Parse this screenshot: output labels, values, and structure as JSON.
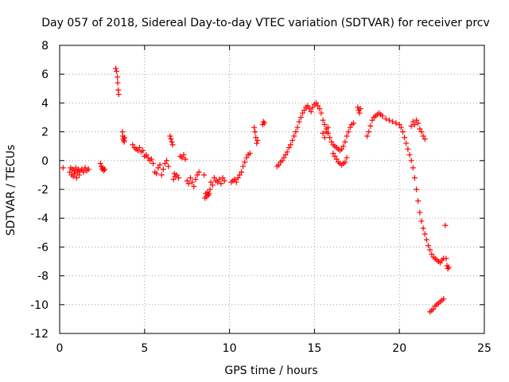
{
  "chart_data": {
    "type": "scatter",
    "title": "Day 057 of 2018, Sidereal Day-to-day VTEC variation (SDTVAR) for receiver prcv",
    "xlabel": "GPS time / hours",
    "ylabel": "SDTVAR / TECUs",
    "xlim": [
      0,
      25
    ],
    "ylim": [
      -12,
      8
    ],
    "grid": true,
    "marker": "+",
    "color": "#ff0000",
    "xticks": [
      0,
      5,
      10,
      15,
      20,
      25
    ],
    "yticks": [
      -12,
      -10,
      -8,
      -6,
      -4,
      -2,
      0,
      2,
      4,
      6,
      8
    ],
    "series": [
      {
        "name": "SDTVAR",
        "x": [
          0.2,
          0.6,
          0.65,
          0.7,
          0.75,
          0.8,
          0.85,
          0.9,
          0.95,
          1.0,
          1.05,
          1.1,
          1.15,
          1.2,
          1.3,
          1.4,
          1.5,
          1.6,
          1.7,
          2.4,
          2.45,
          2.5,
          2.55,
          2.6,
          2.65,
          3.3,
          3.35,
          3.4,
          3.42,
          3.45,
          3.48,
          3.7,
          3.72,
          3.75,
          3.78,
          3.8,
          3.82,
          4.3,
          4.4,
          4.5,
          4.6,
          4.7,
          4.8,
          4.9,
          5.0,
          5.1,
          5.2,
          5.3,
          5.4,
          5.5,
          5.6,
          5.7,
          5.8,
          5.9,
          6.0,
          6.1,
          6.2,
          6.3,
          6.4,
          6.5,
          6.55,
          6.6,
          6.65,
          6.7,
          6.75,
          6.8,
          6.9,
          7.0,
          7.1,
          7.2,
          7.3,
          7.4,
          7.5,
          7.6,
          7.7,
          7.8,
          7.9,
          8.0,
          8.1,
          8.2,
          8.5,
          8.55,
          8.6,
          8.65,
          8.7,
          8.75,
          8.8,
          8.85,
          8.9,
          9.0,
          9.1,
          9.2,
          9.3,
          9.4,
          9.5,
          9.6,
          9.7,
          10.1,
          10.2,
          10.3,
          10.4,
          10.5,
          10.6,
          10.7,
          10.8,
          10.9,
          11.0,
          11.1,
          11.2,
          11.45,
          11.5,
          11.55,
          11.6,
          11.65,
          11.95,
          12.0,
          12.05,
          12.8,
          12.9,
          13.0,
          13.1,
          13.2,
          13.3,
          13.4,
          13.5,
          13.6,
          13.7,
          13.8,
          13.9,
          14.0,
          14.1,
          14.2,
          14.3,
          14.4,
          14.5,
          14.6,
          14.7,
          14.8,
          14.9,
          15.0,
          15.1,
          15.2,
          15.3,
          15.4,
          15.5,
          15.6,
          15.7,
          15.8,
          15.9,
          16.0,
          16.1,
          16.2,
          16.3,
          16.4,
          16.5,
          16.6,
          16.7,
          16.8,
          16.9,
          17.0,
          17.1,
          17.2,
          17.3,
          15.5,
          15.6,
          15.7,
          15.8,
          16.1,
          16.2,
          16.3,
          16.4,
          16.5,
          16.6,
          16.7,
          16.8,
          16.9,
          17.55,
          17.6,
          17.65,
          17.7,
          18.1,
          18.2,
          18.3,
          18.4,
          18.5,
          18.6,
          18.7,
          18.8,
          18.9,
          19.0,
          19.2,
          19.4,
          19.6,
          19.8,
          20.0,
          20.1,
          20.2,
          20.3,
          20.4,
          20.5,
          20.6,
          20.7,
          20.8,
          20.9,
          21.0,
          21.1,
          21.2,
          21.3,
          21.4,
          21.5,
          21.6,
          21.7,
          21.8,
          21.9,
          22.0,
          22.1,
          22.2,
          22.3,
          22.4,
          22.5,
          22.6,
          20.7,
          20.8,
          20.9,
          21.0,
          21.1,
          21.2,
          21.3,
          21.4,
          21.5,
          22.7,
          22.75,
          22.8,
          22.85,
          22.9,
          21.8,
          21.9,
          22.0,
          22.1,
          22.2,
          22.3,
          22.4,
          22.5,
          22.6
        ],
        "y": [
          -0.5,
          -0.8,
          -0.5,
          -1.0,
          -0.6,
          -1.1,
          -0.7,
          -0.9,
          -0.5,
          -1.2,
          -0.8,
          -0.6,
          -1.0,
          -0.7,
          -0.6,
          -0.8,
          -0.5,
          -0.7,
          -0.6,
          -0.2,
          -0.4,
          -0.6,
          -0.5,
          -0.7,
          -0.6,
          6.4,
          6.2,
          5.8,
          5.4,
          4.9,
          4.6,
          2.0,
          1.7,
          1.5,
          1.4,
          1.3,
          1.6,
          1.1,
          0.9,
          0.8,
          0.7,
          0.9,
          0.6,
          0.7,
          0.3,
          0.4,
          0.2,
          0.0,
          0.1,
          -0.2,
          -0.8,
          -0.9,
          -0.5,
          -0.3,
          -1.0,
          -0.6,
          -0.2,
          0.0,
          -0.4,
          1.7,
          1.5,
          1.3,
          1.1,
          -1.3,
          -0.9,
          -1.1,
          -1.0,
          -1.2,
          0.3,
          0.2,
          0.4,
          0.1,
          -1.4,
          -1.6,
          -1.2,
          -1.5,
          -1.8,
          -1.3,
          -1.0,
          -0.8,
          -1.0,
          -2.6,
          -2.3,
          -2.5,
          -2.2,
          -2.4,
          -2.3,
          -2.0,
          -1.5,
          -1.7,
          -1.2,
          -1.4,
          -1.5,
          -1.3,
          -1.6,
          -1.2,
          -1.4,
          -1.5,
          -1.4,
          -1.3,
          -1.5,
          -1.2,
          -1.0,
          -0.8,
          -0.4,
          -0.1,
          0.2,
          0.4,
          0.5,
          2.3,
          2.0,
          1.6,
          1.2,
          1.4,
          2.5,
          2.7,
          2.6,
          -0.4,
          -0.3,
          -0.1,
          0.0,
          0.2,
          0.4,
          0.6,
          0.9,
          1.1,
          1.4,
          1.7,
          2.0,
          2.3,
          2.7,
          3.0,
          3.3,
          3.5,
          3.7,
          3.8,
          3.6,
          3.4,
          3.7,
          3.9,
          4.0,
          3.8,
          3.6,
          3.3,
          2.8,
          2.5,
          2.2,
          1.9,
          1.6,
          1.3,
          1.1,
          1.0,
          0.9,
          0.8,
          0.7,
          0.8,
          1.0,
          1.3,
          1.7,
          2.0,
          2.3,
          2.5,
          2.6,
          1.9,
          1.6,
          2.0,
          2.3,
          0.5,
          0.3,
          0.1,
          -0.1,
          -0.2,
          -0.3,
          -0.2,
          -0.1,
          0.2,
          3.7,
          3.5,
          3.3,
          3.6,
          1.7,
          2.0,
          2.4,
          2.8,
          3.0,
          3.1,
          3.2,
          3.3,
          3.2,
          3.1,
          2.9,
          2.8,
          2.7,
          2.6,
          2.5,
          2.3,
          2.0,
          1.6,
          1.2,
          0.8,
          0.4,
          0.0,
          -0.5,
          -1.2,
          -2.0,
          -2.8,
          -3.6,
          -4.2,
          -4.7,
          -5.1,
          -5.5,
          -5.9,
          -6.2,
          -6.5,
          -6.7,
          -6.8,
          -6.9,
          -7.0,
          -7.1,
          -6.9,
          -6.8,
          2.4,
          2.7,
          2.5,
          2.8,
          2.6,
          2.2,
          2.0,
          1.7,
          1.5,
          -4.5,
          -6.8,
          -7.3,
          -7.5,
          -7.4,
          -10.5,
          -10.4,
          -10.3,
          -10.1,
          -10.0,
          -9.9,
          -9.8,
          -9.7,
          -9.6
        ]
      }
    ]
  }
}
